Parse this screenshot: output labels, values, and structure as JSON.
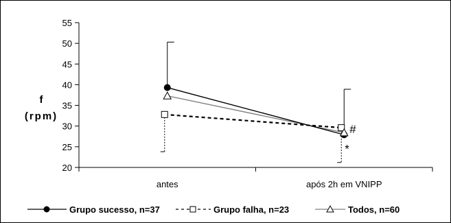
{
  "chart_data": {
    "type": "line",
    "categories": [
      "antes",
      "após 2h em VNIPP"
    ],
    "ylabel_line1": "f",
    "ylabel_line2": "(rpm)",
    "ylim": [
      20,
      55
    ],
    "yticks": [
      20,
      25,
      30,
      35,
      40,
      45,
      50,
      55
    ],
    "series": [
      {
        "name": "Grupo sucesso, n=37",
        "values": [
          39.3,
          27.9
        ],
        "sd_upper": [
          50.3,
          38.9
        ],
        "marker": "filled-circle",
        "line_style": "solid",
        "color": "#000000"
      },
      {
        "name": "Grupo falha, n=23",
        "values": [
          32.8,
          29.6
        ],
        "sd_lower": [
          23.8,
          21.2
        ],
        "marker": "open-square",
        "line_style": "dashed",
        "color": "#000000"
      },
      {
        "name": "Todos, n=60",
        "values": [
          37.3,
          28.4
        ],
        "marker": "open-triangle",
        "line_style": "solid",
        "color": "#808080"
      }
    ],
    "annotations": [
      {
        "text": "#",
        "near_category": 1
      },
      {
        "text": "*",
        "near_category": 1
      }
    ],
    "legend_position": "bottom",
    "grid": false
  }
}
